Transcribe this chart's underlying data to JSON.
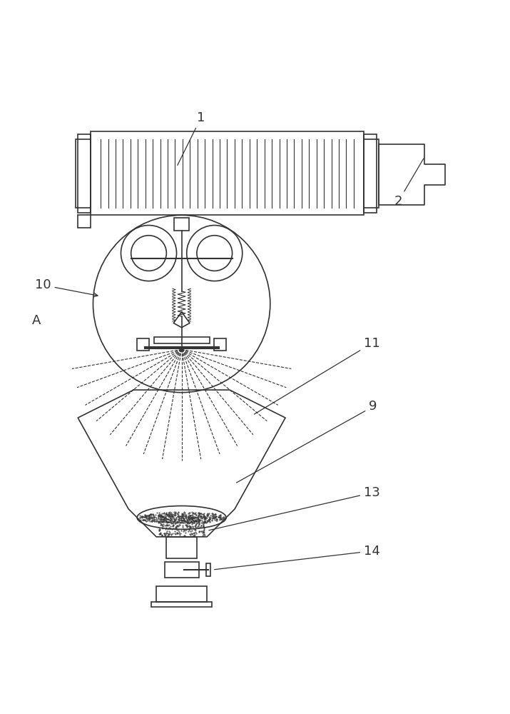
{
  "bg_color": "#ffffff",
  "line_color": "#333333",
  "label_color": "#333333",
  "fig_width": 7.15,
  "fig_height": 10.0
}
